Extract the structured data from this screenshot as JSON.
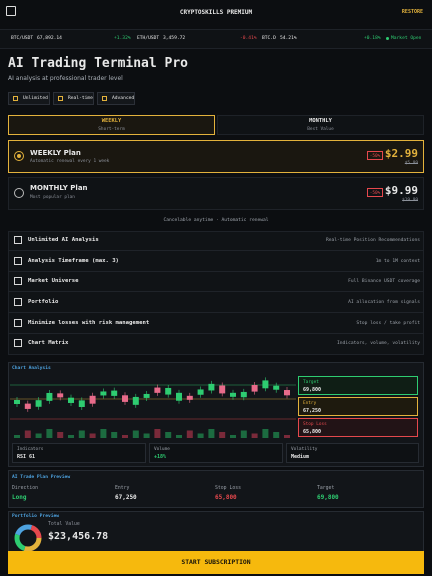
{
  "header": {
    "title": "CRYPTOSKILLS PREMIUM",
    "restore": "RESTORE"
  },
  "ticker": [
    {
      "symbol": "BTC/USDT",
      "price": "67,892.14",
      "change": "+1.32%"
    },
    {
      "symbol": "ETH/USDT",
      "price": "3,459.72",
      "change": "-0.41%"
    },
    {
      "symbol": "BTC.D",
      "price": "54.21%",
      "change": "+0.18%"
    }
  ],
  "market_status": "Market Open",
  "hero": {
    "title": "AI Trading Terminal Pro",
    "subtitle": "AI analysis at professional trader level",
    "badges": [
      "Unlimited",
      "Real-time",
      "Advanced"
    ]
  },
  "tabs": [
    {
      "label": "WEEKLY",
      "sub": "Short-term"
    },
    {
      "label": "MONTHLY",
      "sub": "Best Value"
    }
  ],
  "plans": [
    {
      "name": "WEEKLY Plan",
      "desc": "Automatic renewal every 1 week",
      "discount": "-50%",
      "price": "$2.99",
      "old_price": "$5.99"
    },
    {
      "name": "MONTHLY Plan",
      "desc": "Most popular plan",
      "discount": "-50%",
      "price": "$9.99",
      "old_price": "$19.99"
    }
  ],
  "note": "Cancelable anytime · Automatic renewal",
  "features": [
    {
      "title": "Unlimited AI Analysis",
      "detail": "Real-time Position Recommendations"
    },
    {
      "title": "Analysis Timeframe (max. 3)",
      "detail": "1m to 1M context"
    },
    {
      "title": "Market Universe",
      "detail": "Full Binance USDT coverage"
    },
    {
      "title": "Portfolio",
      "detail": "AI allocation from signals"
    },
    {
      "title": "Minimize losses with risk management",
      "detail": "Stop loss / take profit"
    },
    {
      "title": "Chart Matrix",
      "detail": "Indicators, volume, volatility"
    }
  ],
  "chart_analysis": {
    "title": "Chart Analysis",
    "levels": [
      {
        "label": "Target",
        "value": "69,800"
      },
      {
        "label": "Entry",
        "value": "67,250"
      },
      {
        "label": "Stop Loss",
        "value": "65,800"
      }
    ],
    "stats": [
      {
        "label": "Indicators",
        "value": "RSI 61"
      },
      {
        "label": "Volume",
        "value": "+18%"
      },
      {
        "label": "Volatility",
        "value": "Medium"
      }
    ]
  },
  "trade_plan": {
    "title": "AI Trade Plan Preview",
    "fields": [
      {
        "label": "Direction",
        "value": "Long"
      },
      {
        "label": "Entry",
        "value": "67,250"
      },
      {
        "label": "Stop Loss",
        "value": "65,800"
      },
      {
        "label": "Target",
        "value": "69,800"
      }
    ]
  },
  "portfolio": {
    "title": "Portfolio Preview",
    "label": "Total Value",
    "value": "$23,456.78"
  },
  "cta": "START SUBSCRIPTION"
}
